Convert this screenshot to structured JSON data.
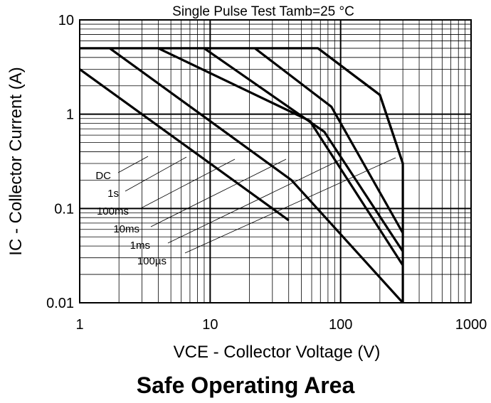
{
  "chart_data": {
    "type": "line",
    "title": "Safe Operating Area",
    "subtitle": "Single Pulse Test Tamb=25 °C",
    "xlabel": "VCE - Collector Voltage (V)",
    "ylabel": "IC - Collector Current (A)",
    "xscale": "log",
    "yscale": "log",
    "xlim": [
      1,
      1000
    ],
    "ylim": [
      0.01,
      10
    ],
    "xticks": [
      "1",
      "10",
      "100",
      "1000"
    ],
    "yticks": [
      "10",
      "1",
      "0.1",
      "0.01"
    ],
    "grid": true,
    "series": [
      {
        "name": "DC",
        "points": [
          [
            1,
            3
          ],
          [
            40,
            0.075
          ]
        ]
      },
      {
        "name": "1s",
        "points": [
          [
            1.7,
            5
          ],
          [
            42,
            0.2
          ],
          [
            300,
            0.01
          ]
        ]
      },
      {
        "name": "100ms",
        "points": [
          [
            4,
            5
          ],
          [
            58,
            0.85
          ],
          [
            300,
            0.025
          ]
        ]
      },
      {
        "name": "10ms",
        "points": [
          [
            9,
            5
          ],
          [
            75,
            0.65
          ],
          [
            300,
            0.035
          ]
        ]
      },
      {
        "name": "1ms",
        "points": [
          [
            22,
            5
          ],
          [
            85,
            1.2
          ],
          [
            300,
            0.055
          ]
        ]
      },
      {
        "name": "100µs",
        "points": [
          [
            67,
            5
          ],
          [
            200,
            1.6
          ],
          [
            300,
            0.3
          ]
        ]
      }
    ],
    "boundary": {
      "points": [
        [
          1,
          5
        ],
        [
          67,
          5
        ],
        [
          200,
          1.6
        ],
        [
          300,
          0.3
        ],
        [
          300,
          0.01
        ]
      ]
    }
  }
}
